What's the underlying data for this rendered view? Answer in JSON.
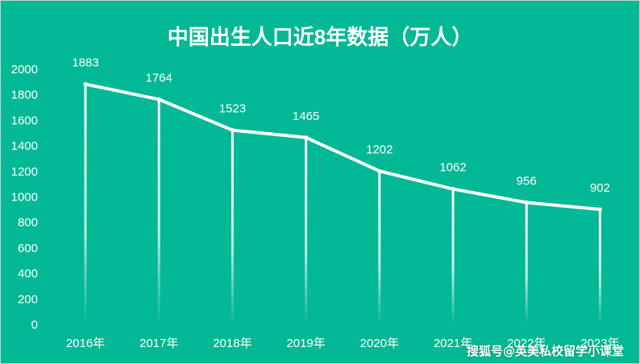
{
  "chart_data": {
    "type": "line",
    "title": "中国出生人口近8年数据（万人）",
    "xlabel": "",
    "ylabel": "",
    "categories": [
      "2016年",
      "2017年",
      "2018年",
      "2019年",
      "2020年",
      "2021年",
      "2022年",
      "2023年"
    ],
    "series": [
      {
        "values": [
          1883,
          1764,
          1523,
          1465,
          1202,
          1062,
          956,
          902
        ]
      }
    ],
    "ylim": [
      0,
      2000
    ],
    "yticks": [
      0,
      200,
      400,
      600,
      800,
      1000,
      1200,
      1400,
      1600,
      1800,
      2000
    ],
    "data_labels": true,
    "drop_lines": true,
    "grid": false,
    "legend": "none",
    "colors": {
      "background": "#02b895",
      "line": "#ffffff",
      "text": "#ffffff"
    }
  },
  "watermark": "搜狐号@英美私校留学小课堂"
}
